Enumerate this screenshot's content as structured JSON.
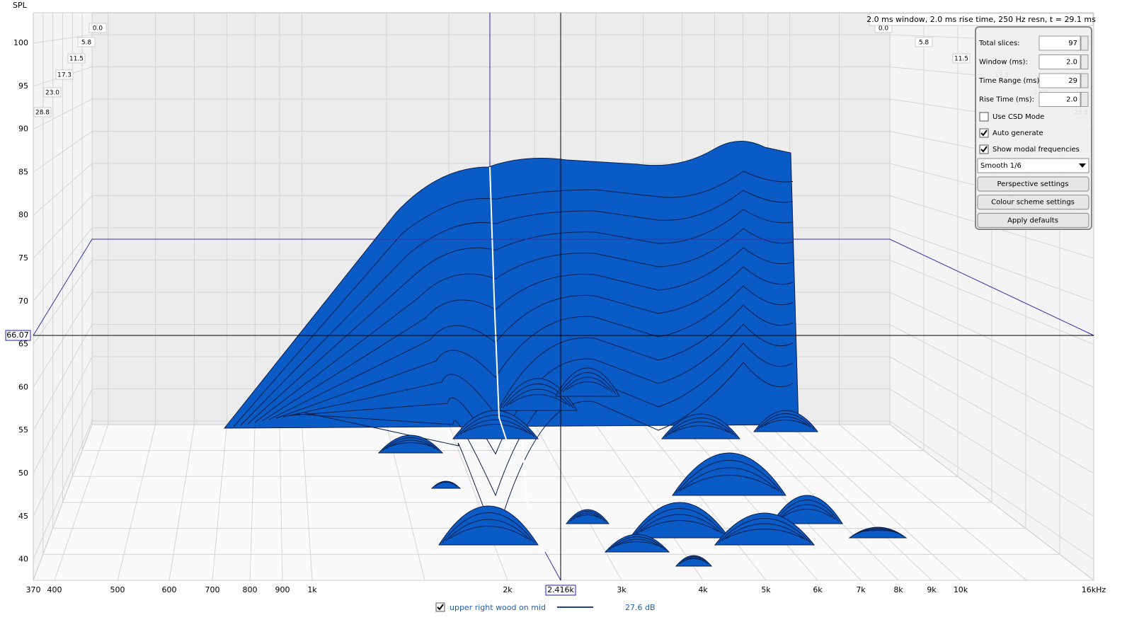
{
  "y_axis": {
    "label": "SPL",
    "ticks": [
      "100",
      "95",
      "90",
      "85",
      "80",
      "75",
      "70",
      "65",
      "60",
      "55",
      "50",
      "45",
      "40"
    ]
  },
  "x_axis": {
    "ticks": [
      "370",
      "400",
      "500",
      "600",
      "700",
      "800",
      "900",
      "1k",
      "2k",
      "3k",
      "4k",
      "5k",
      "6k",
      "7k",
      "8k",
      "9k",
      "10k",
      "16kHz"
    ]
  },
  "cursor": {
    "x": "2.416k",
    "y": "66.07"
  },
  "time_labels": [
    "0.0",
    "5.8",
    "11.5",
    "17.3",
    "23.0",
    "28.8"
  ],
  "info": "2.0 ms window, 2.0 ms rise time,  250 Hz resn, t = 29.1 ms",
  "controls": {
    "fields": [
      {
        "label": "Total slices:",
        "value": "97"
      },
      {
        "label": "Window (ms):",
        "value": "2.0"
      },
      {
        "label": "Time Range (ms):",
        "value": "29"
      },
      {
        "label": "Rise Time (ms):",
        "value": "2.0"
      }
    ],
    "checkboxes": [
      {
        "label": "Use CSD Mode",
        "checked": false
      },
      {
        "label": "Auto generate",
        "checked": true
      },
      {
        "label": "Show modal frequencies",
        "checked": true
      }
    ],
    "smoothing": "Smooth 1/6",
    "buttons": [
      "Perspective settings",
      "Colour scheme settings",
      "Apply defaults"
    ]
  },
  "legend": {
    "name": "upper right wood on mid",
    "value": "27.6 dB",
    "checked": true
  }
}
